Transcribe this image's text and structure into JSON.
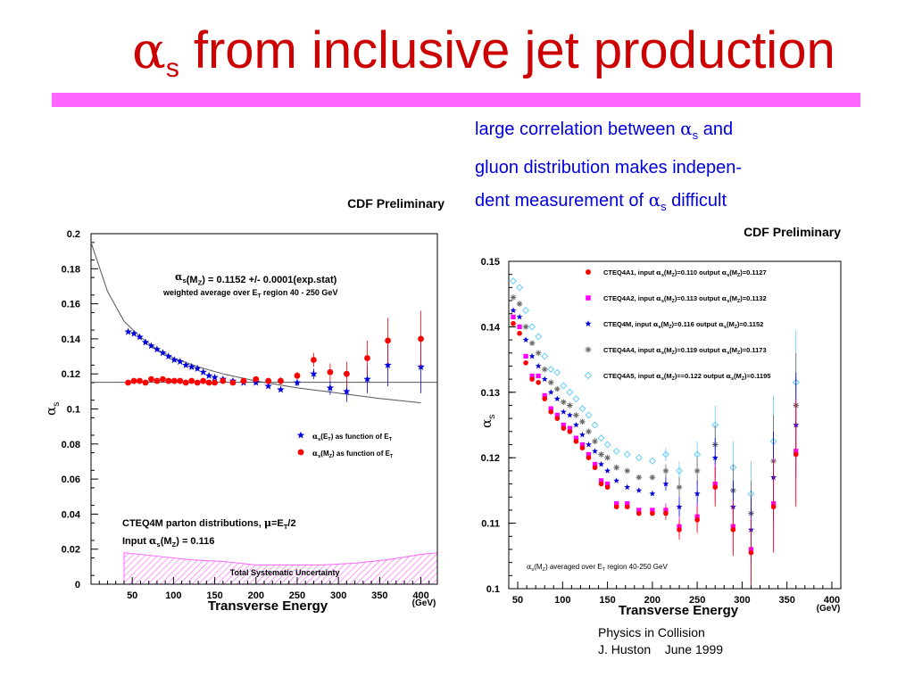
{
  "slide": {
    "title_symbol": "α",
    "title_subscript": "s",
    "title_text": "from inclusive jet production",
    "note": {
      "line1_pre": "large correlation between ",
      "line1_symbol": "α",
      "line1_sub": "s",
      "line1_post": " and",
      "line2": "gluon distribution makes indepen-",
      "line3_pre": "dent measurement of ",
      "line3_symbol": "α",
      "line3_sub": "s",
      "line3_post": " difficult"
    },
    "credit_line1": "Physics in Collision",
    "credit_line2": "J. Huston    June 1999"
  },
  "colors": {
    "title": "#cc0000",
    "bar": "#ff66ff",
    "note": "#0000dd",
    "blue_star": "#0000dd",
    "red_dot": "#ff0000",
    "magenta": "#ff00ff",
    "systematic_band": "#ff66ff"
  },
  "chart_data": [
    {
      "type": "scatter",
      "header": "CDF Preliminary",
      "xlabel": "Transverse Energy",
      "xunit": "(GeV)",
      "ylabel": "αs",
      "xlim": [
        0,
        420
      ],
      "ylim": [
        0,
        0.2
      ],
      "xticks": [
        50,
        100,
        150,
        200,
        250,
        300,
        350,
        400
      ],
      "yticks": [
        0,
        0.02,
        0.04,
        0.06,
        0.08,
        0.1,
        0.12,
        0.14,
        0.16,
        0.18,
        0.2
      ],
      "ytick_labels": [
        "0",
        "0.02",
        "0.04",
        "0.06",
        "0.08",
        "0.1",
        "0.12",
        "0.14",
        "0.16",
        "0.18",
        "0.2"
      ],
      "annotation_main": "αs(MZ)  = 0.1152 +/- 0.0001(exp.stat)",
      "annotation_sub": "weighted average over ET region 40 - 250 GeV",
      "pdf_note": "CTEQ4M parton distributions, μ=ET/2",
      "input_note": "Input αs(MZ) = 0.116",
      "band_label": "Total Systematic Uncertainty",
      "reference_line": 0.1152,
      "running_curve": {
        "x": [
          0,
          20,
          40,
          60,
          80,
          100,
          130,
          160,
          200,
          250,
          300,
          350,
          400
        ],
        "y": [
          0.195,
          0.167,
          0.15,
          0.141,
          0.134,
          0.129,
          0.124,
          0.12,
          0.116,
          0.112,
          0.109,
          0.106,
          0.1035
        ]
      },
      "series": [
        {
          "name": "αs(ET) as function of ET",
          "marker": "star",
          "x": [
            45,
            52,
            59,
            66,
            73,
            80,
            87,
            94,
            101,
            108,
            115,
            122,
            129,
            136,
            143,
            150,
            160,
            172,
            185,
            200,
            215,
            230,
            250,
            270,
            290,
            310,
            335,
            360,
            400
          ],
          "y": [
            0.144,
            0.143,
            0.141,
            0.138,
            0.136,
            0.134,
            0.132,
            0.13,
            0.128,
            0.127,
            0.125,
            0.124,
            0.123,
            0.121,
            0.119,
            0.118,
            0.117,
            0.116,
            0.115,
            0.115,
            0.113,
            0.111,
            0.115,
            0.12,
            0.112,
            0.11,
            0.117,
            0.125,
            0.124
          ],
          "err": [
            0,
            0,
            0,
            0,
            0,
            0,
            0,
            0,
            0,
            0,
            0,
            0,
            0,
            0,
            0,
            0,
            0,
            0,
            0,
            0,
            0,
            0,
            0.002,
            0.003,
            0.004,
            0.006,
            0.008,
            0.012,
            0.015
          ]
        },
        {
          "name": "αs(MZ) as function of ET",
          "marker": "circle",
          "x": [
            45,
            52,
            59,
            66,
            73,
            80,
            87,
            94,
            101,
            108,
            115,
            122,
            129,
            136,
            143,
            150,
            160,
            172,
            185,
            200,
            215,
            230,
            250,
            270,
            290,
            310,
            335,
            360,
            400
          ],
          "y": [
            0.115,
            0.116,
            0.116,
            0.115,
            0.117,
            0.116,
            0.117,
            0.116,
            0.116,
            0.116,
            0.115,
            0.116,
            0.115,
            0.116,
            0.115,
            0.115,
            0.116,
            0.115,
            0.116,
            0.117,
            0.116,
            0.116,
            0.119,
            0.128,
            0.121,
            0.12,
            0.129,
            0.139,
            0.14
          ],
          "err": [
            0,
            0,
            0,
            0,
            0,
            0,
            0,
            0,
            0,
            0,
            0,
            0,
            0,
            0,
            0,
            0,
            0,
            0,
            0,
            0,
            0,
            0.002,
            0.002,
            0.004,
            0.005,
            0.007,
            0.01,
            0.013,
            0.016
          ]
        }
      ],
      "systematic_band": {
        "x": [
          40,
          80,
          120,
          160,
          200,
          240,
          280,
          320,
          360,
          400,
          420
        ],
        "y": [
          0.018,
          0.016,
          0.014,
          0.013,
          0.011,
          0.011,
          0.011,
          0.012,
          0.014,
          0.017,
          0.018
        ]
      },
      "legend_position": "lower-right"
    },
    {
      "type": "scatter",
      "header": "CDF Preliminary",
      "xlabel": "Transverse Energy",
      "xunit": "(GeV)",
      "ylabel": "αs",
      "xlim": [
        40,
        410
      ],
      "ylim": [
        0.1,
        0.15
      ],
      "xticks": [
        50,
        100,
        150,
        200,
        250,
        300,
        350,
        400
      ],
      "yticks": [
        0.1,
        0.11,
        0.12,
        0.13,
        0.14,
        0.15
      ],
      "ytick_labels": [
        "0.1",
        "0.11",
        "0.12",
        "0.13",
        "0.14",
        "0.15"
      ],
      "annotation": "αs(MZ) averaged over ET region 40-250 GeV",
      "x": [
        45,
        52,
        59,
        66,
        73,
        80,
        87,
        94,
        101,
        108,
        115,
        122,
        129,
        136,
        143,
        150,
        160,
        172,
        185,
        200,
        215,
        230,
        250,
        270,
        290,
        310,
        335,
        360
      ],
      "series": [
        {
          "name": "CTEQ4A1, input αs(MZ)=0.110 output αs(MZ)=0.1127",
          "marker": "circle",
          "y": [
            0.1405,
            0.139,
            0.1345,
            0.132,
            0.1315,
            0.129,
            0.127,
            0.126,
            0.1245,
            0.124,
            0.1225,
            0.1215,
            0.12,
            0.1185,
            0.116,
            0.1155,
            0.1125,
            0.1125,
            0.1115,
            0.1115,
            0.1115,
            0.109,
            0.1105,
            0.1155,
            0.109,
            0.1055,
            0.1125,
            0.1205
          ],
          "err": [
            0,
            0,
            0,
            0,
            0,
            0,
            0,
            0,
            0,
            0,
            0,
            0,
            0,
            0,
            0,
            0,
            0,
            0,
            0,
            0,
            0.001,
            0.0015,
            0.002,
            0.003,
            0.004,
            0.005,
            0.007,
            0.008
          ]
        },
        {
          "name": "CTEQ4A2, input αs(MZ)=0.113 output αs(MZ)=0.1132",
          "marker": "square",
          "y": [
            0.1415,
            0.14,
            0.1355,
            0.1325,
            0.1325,
            0.1295,
            0.1275,
            0.1265,
            0.125,
            0.1245,
            0.123,
            0.122,
            0.1205,
            0.119,
            0.1165,
            0.116,
            0.113,
            0.113,
            0.112,
            0.112,
            0.112,
            0.1095,
            0.111,
            0.116,
            0.1095,
            0.106,
            0.113,
            0.121
          ],
          "err": [
            0,
            0,
            0,
            0,
            0,
            0,
            0,
            0,
            0,
            0,
            0,
            0,
            0,
            0,
            0,
            0,
            0,
            0,
            0,
            0,
            0.001,
            0.0015,
            0.002,
            0.003,
            0.004,
            0.005,
            0.007,
            0.008
          ]
        },
        {
          "name": "CTEQ4M, input αs(MZ)=0.116 output αs(MZ)=0.1152",
          "marker": "star",
          "y": [
            0.1425,
            0.1415,
            0.138,
            0.1355,
            0.134,
            0.132,
            0.13,
            0.129,
            0.127,
            0.1265,
            0.125,
            0.1235,
            0.122,
            0.121,
            0.119,
            0.118,
            0.1165,
            0.1155,
            0.115,
            0.1145,
            0.116,
            0.1125,
            0.1145,
            0.12,
            0.1125,
            0.109,
            0.117,
            0.125
          ],
          "err": [
            0,
            0,
            0,
            0,
            0,
            0,
            0,
            0,
            0,
            0,
            0,
            0,
            0,
            0,
            0,
            0,
            0,
            0,
            0,
            0,
            0.001,
            0.0015,
            0.002,
            0.003,
            0.004,
            0.005,
            0.007,
            0.008
          ]
        },
        {
          "name": "CTEQ4A4, input αs(MZ)=0.119 output αs(MZ)=0.1173",
          "marker": "asterisk",
          "y": [
            0.1445,
            0.1435,
            0.14,
            0.1375,
            0.136,
            0.1335,
            0.1315,
            0.1305,
            0.1285,
            0.128,
            0.1265,
            0.1255,
            0.124,
            0.1225,
            0.1205,
            0.12,
            0.1185,
            0.118,
            0.117,
            0.117,
            0.118,
            0.1155,
            0.118,
            0.122,
            0.115,
            0.1115,
            0.1195,
            0.128
          ],
          "err": [
            0,
            0,
            0,
            0,
            0,
            0,
            0,
            0,
            0,
            0,
            0,
            0,
            0,
            0,
            0,
            0,
            0,
            0,
            0,
            0,
            0.001,
            0.0015,
            0.002,
            0.003,
            0.004,
            0.005,
            0.007,
            0.008
          ]
        },
        {
          "name": "CTEQ4A5, input αs(MZ)==0.122 output αs(MZ)=0.1195",
          "marker": "diamond",
          "y": [
            0.147,
            0.146,
            0.1425,
            0.14,
            0.1385,
            0.1355,
            0.1335,
            0.133,
            0.131,
            0.13,
            0.129,
            0.1275,
            0.1265,
            0.125,
            0.123,
            0.122,
            0.121,
            0.1205,
            0.12,
            0.1195,
            0.1205,
            0.118,
            0.1205,
            0.125,
            0.1185,
            0.1145,
            0.1225,
            0.1315
          ],
          "err": [
            0,
            0,
            0,
            0,
            0,
            0,
            0,
            0,
            0,
            0,
            0,
            0,
            0,
            0,
            0,
            0,
            0,
            0,
            0,
            0,
            0.001,
            0.0015,
            0.002,
            0.003,
            0.004,
            0.005,
            0.007,
            0.008
          ]
        }
      ],
      "series_colors": [
        "#ff0000",
        "#ff00ff",
        "#0000dd",
        "#666666",
        "#66ccff"
      ],
      "legend_position": "top-right"
    }
  ]
}
